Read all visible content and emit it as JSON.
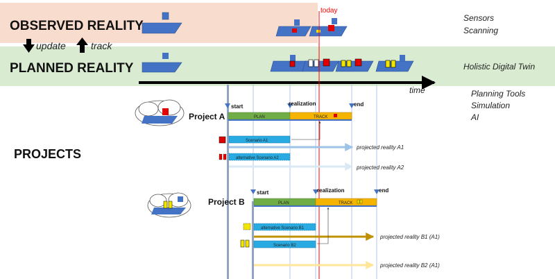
{
  "rows": {
    "observed": "OBSERVED REALITY",
    "planned": "PLANNED REALITY",
    "projects": "PROJECTS",
    "update": "update",
    "track": "track"
  },
  "today": "today",
  "time": "time",
  "right_labels": {
    "sensors": "Sensors",
    "scanning": "Scanning",
    "twin": "Holistic Digital Twin",
    "tools": "Planning Tools",
    "simulation": "Simulation",
    "ai": "AI"
  },
  "project_a": {
    "name": "Project A",
    "start": "start",
    "realization": "realization",
    "end": "end",
    "plan": "PLAN",
    "track": "TRACK",
    "scenario1": "Scenario A1",
    "scenario2": "alternative Scenario A2",
    "projected1": "projected reality A1",
    "projected2": "projected reality A2"
  },
  "project_b": {
    "name": "Project B",
    "start": "start",
    "realization": "realization",
    "end": "end",
    "plan": "PLAN",
    "track": "TRACK",
    "scenario1": "alternative Scenario B1",
    "scenario2": "Scenario B2",
    "projected1": "projected reality B1 (A1)",
    "projected2": "projected reality B2 (A1)"
  },
  "colors": {
    "observed_band": "#f8dccd",
    "planned_band": "#d9ecd2",
    "plan_bar": "#70ad47",
    "track_bar": "#f4b400",
    "scenario": "#29abe2",
    "platform": "#4472c4",
    "red_block": "#e00000",
    "yellow_block": "#f2e600",
    "today_line": "#ff0000",
    "arrow_a1": "#9dc3e6",
    "arrow_a2": "#dbe9f5",
    "arrow_b1": "#bf9000",
    "arrow_b2": "#ffe699"
  }
}
